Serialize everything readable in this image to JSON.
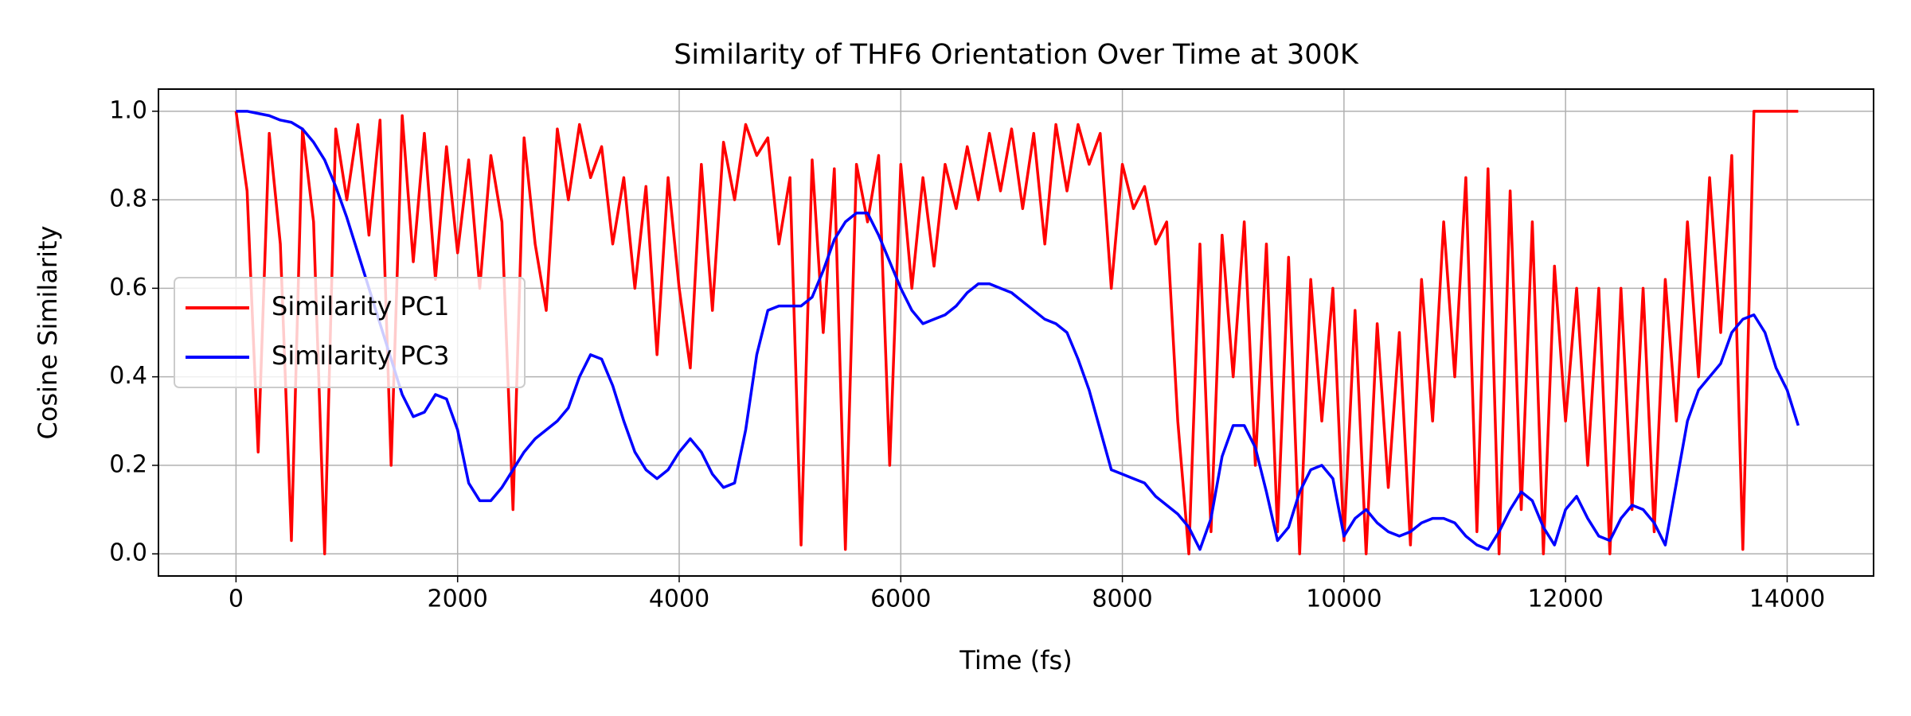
{
  "chart_data": {
    "type": "line",
    "title": "Similarity of THF6 Orientation Over Time at 300K",
    "x_label": "Time (fs)",
    "y_label": "Cosine Similarity",
    "x": [
      0,
      100,
      200,
      300,
      400,
      500,
      600,
      700,
      800,
      900,
      1000,
      1100,
      1200,
      1300,
      1400,
      1500,
      1600,
      1700,
      1800,
      1900,
      2000,
      2100,
      2200,
      2300,
      2400,
      2500,
      2600,
      2700,
      2800,
      2900,
      3000,
      3100,
      3200,
      3300,
      3400,
      3500,
      3600,
      3700,
      3800,
      3900,
      4000,
      4100,
      4200,
      4300,
      4400,
      4500,
      4600,
      4700,
      4800,
      4900,
      5000,
      5100,
      5200,
      5300,
      5400,
      5500,
      5600,
      5700,
      5800,
      5900,
      6000,
      6100,
      6200,
      6300,
      6400,
      6500,
      6600,
      6700,
      6800,
      6900,
      7000,
      7100,
      7200,
      7300,
      7400,
      7500,
      7600,
      7700,
      7800,
      7900,
      8000,
      8100,
      8200,
      8300,
      8400,
      8500,
      8600,
      8700,
      8800,
      8900,
      9000,
      9100,
      9200,
      9300,
      9400,
      9500,
      9600,
      9700,
      9800,
      9900,
      10000,
      10100,
      10200,
      10300,
      10400,
      10500,
      10600,
      10700,
      10800,
      10900,
      11000,
      11100,
      11200,
      11300,
      11400,
      11500,
      11600,
      11700,
      11800,
      11900,
      12000,
      12100,
      12200,
      12300,
      12400,
      12500,
      12600,
      12700,
      12800,
      12900,
      13000,
      13100,
      13200,
      13300,
      13400,
      13500,
      13600,
      13700,
      13800,
      13900,
      14000,
      14100
    ],
    "series": [
      {
        "name": "Similarity PC1",
        "color": "#ff0000",
        "values": [
          1.0,
          0.82,
          0.23,
          0.95,
          0.7,
          0.03,
          0.96,
          0.75,
          0.0,
          0.96,
          0.8,
          0.97,
          0.72,
          0.98,
          0.2,
          0.99,
          0.66,
          0.95,
          0.62,
          0.92,
          0.68,
          0.89,
          0.6,
          0.9,
          0.75,
          0.1,
          0.94,
          0.7,
          0.55,
          0.96,
          0.8,
          0.97,
          0.85,
          0.92,
          0.7,
          0.85,
          0.6,
          0.83,
          0.45,
          0.85,
          0.6,
          0.42,
          0.88,
          0.55,
          0.93,
          0.8,
          0.97,
          0.9,
          0.94,
          0.7,
          0.85,
          0.02,
          0.89,
          0.5,
          0.87,
          0.01,
          0.88,
          0.75,
          0.9,
          0.2,
          0.88,
          0.6,
          0.85,
          0.65,
          0.88,
          0.78,
          0.92,
          0.8,
          0.95,
          0.82,
          0.96,
          0.78,
          0.95,
          0.7,
          0.97,
          0.82,
          0.97,
          0.88,
          0.95,
          0.6,
          0.88,
          0.78,
          0.83,
          0.7,
          0.75,
          0.3,
          0.0,
          0.7,
          0.05,
          0.72,
          0.4,
          0.75,
          0.2,
          0.7,
          0.05,
          0.67,
          0.0,
          0.62,
          0.3,
          0.6,
          0.03,
          0.55,
          0.0,
          0.52,
          0.15,
          0.5,
          0.02,
          0.62,
          0.3,
          0.75,
          0.4,
          0.85,
          0.05,
          0.87,
          0.0,
          0.82,
          0.1,
          0.75,
          0.0,
          0.65,
          0.3,
          0.6,
          0.2,
          0.6,
          0.0,
          0.6,
          0.1,
          0.6,
          0.05,
          0.62,
          0.3,
          0.75,
          0.4,
          0.85,
          0.5,
          0.9,
          0.01,
          1.0,
          1.0,
          1.0,
          1.0,
          1.0
        ]
      },
      {
        "name": "Similarity PC3",
        "color": "#0000ff",
        "values": [
          1.0,
          1.0,
          0.995,
          0.99,
          0.98,
          0.975,
          0.96,
          0.93,
          0.89,
          0.83,
          0.76,
          0.68,
          0.6,
          0.52,
          0.44,
          0.36,
          0.31,
          0.32,
          0.36,
          0.35,
          0.28,
          0.16,
          0.12,
          0.12,
          0.15,
          0.19,
          0.23,
          0.26,
          0.28,
          0.3,
          0.33,
          0.4,
          0.45,
          0.44,
          0.38,
          0.3,
          0.23,
          0.19,
          0.17,
          0.19,
          0.23,
          0.26,
          0.23,
          0.18,
          0.15,
          0.16,
          0.28,
          0.45,
          0.55,
          0.56,
          0.56,
          0.56,
          0.58,
          0.64,
          0.71,
          0.75,
          0.77,
          0.77,
          0.72,
          0.66,
          0.6,
          0.55,
          0.52,
          0.53,
          0.54,
          0.56,
          0.59,
          0.61,
          0.61,
          0.6,
          0.59,
          0.57,
          0.55,
          0.53,
          0.52,
          0.5,
          0.44,
          0.37,
          0.28,
          0.19,
          0.18,
          0.17,
          0.16,
          0.13,
          0.11,
          0.09,
          0.06,
          0.01,
          0.08,
          0.22,
          0.29,
          0.29,
          0.24,
          0.14,
          0.03,
          0.06,
          0.14,
          0.19,
          0.2,
          0.17,
          0.04,
          0.08,
          0.1,
          0.07,
          0.05,
          0.04,
          0.05,
          0.07,
          0.08,
          0.08,
          0.07,
          0.04,
          0.02,
          0.01,
          0.05,
          0.1,
          0.14,
          0.12,
          0.06,
          0.02,
          0.1,
          0.13,
          0.08,
          0.04,
          0.03,
          0.08,
          0.11,
          0.1,
          0.07,
          0.02,
          0.16,
          0.3,
          0.37,
          0.4,
          0.43,
          0.5,
          0.53,
          0.54,
          0.5,
          0.42,
          0.37,
          0.29
        ]
      }
    ],
    "xlim": [
      -700,
      14780
    ],
    "ylim": [
      -0.05,
      1.05
    ],
    "xticks": [
      0,
      2000,
      4000,
      6000,
      8000,
      10000,
      12000,
      14000
    ],
    "yticks": [
      {
        "value": 0,
        "label": "0.0"
      },
      0.2,
      0.4,
      0.6,
      0.8,
      {
        "value": 1,
        "label": "1.0"
      }
    ],
    "grid": true,
    "legend_loc": "center left"
  }
}
